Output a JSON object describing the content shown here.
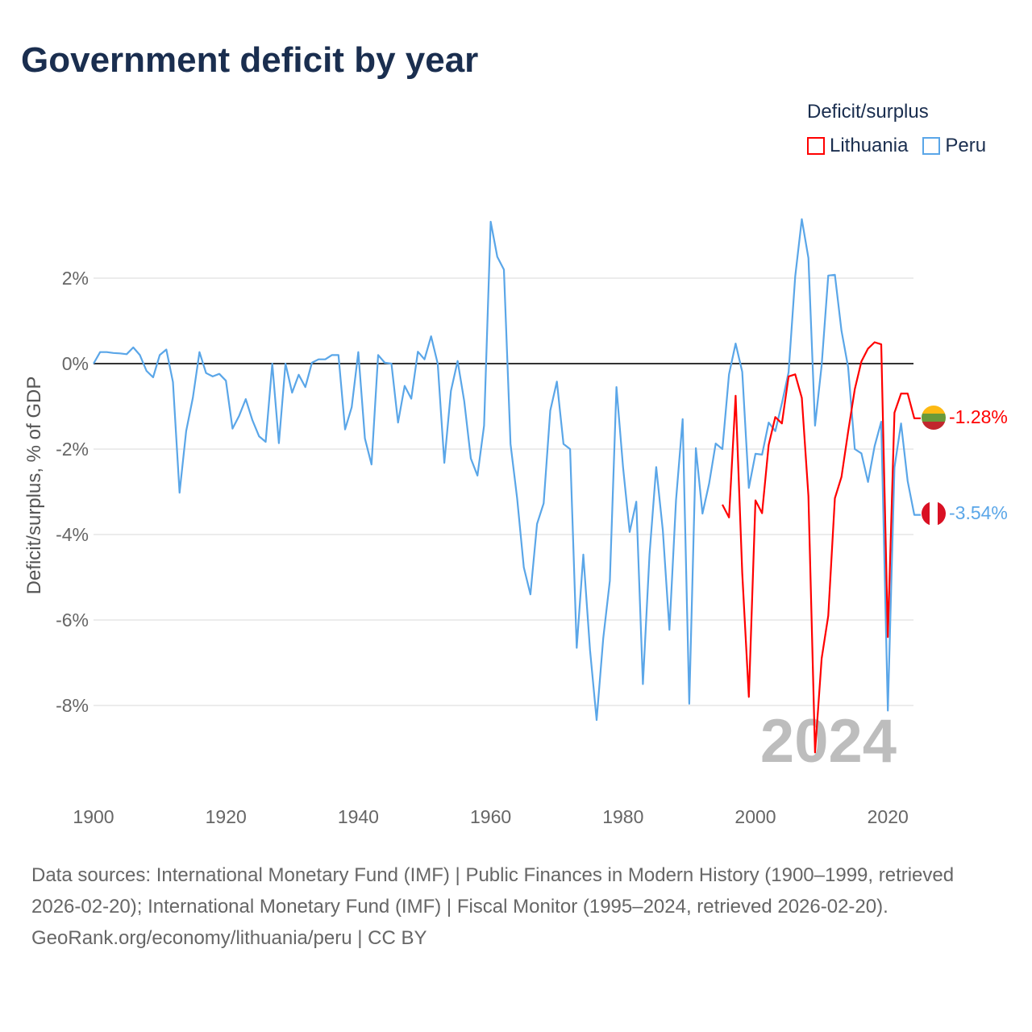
{
  "title": "Government deficit by year",
  "legend": {
    "title": "Deficit/surplus",
    "items": [
      {
        "name": "Lithuania",
        "color": "#ff0000"
      },
      {
        "name": "Peru",
        "color": "#5aa6e8"
      }
    ]
  },
  "year_label": "2024",
  "end_labels": {
    "lithuania": "-1.28%",
    "peru": "-3.54%"
  },
  "footer": {
    "sources": "Data sources: International Monetary Fund (IMF) | Public Finances in Modern History (1900–1999, retrieved 2026-02-20); International Monetary Fund (IMF) | Fiscal Monitor (1995–2024, retrieved 2026-02-20).",
    "credit": "GeoRank.org/economy/lithuania/peru | CC BY"
  },
  "chart_data": {
    "type": "line",
    "title": "Government deficit by year",
    "xlabel": "",
    "ylabel": "Deficit/surplus, % of GDP",
    "xlim": [
      1900,
      2024
    ],
    "ylim": [
      -10,
      3.5
    ],
    "x_ticks": [
      1900,
      1920,
      1940,
      1960,
      1980,
      2000,
      2020
    ],
    "x_tick_labels": [
      "1900",
      "1920",
      "1940",
      "1960",
      "1980",
      "2000",
      "2020"
    ],
    "y_ticks": [
      2,
      0,
      -2,
      -4,
      -6,
      -8
    ],
    "y_tick_labels": [
      "2%",
      "0%",
      "-2%",
      "-4%",
      "-6%",
      "-8%"
    ],
    "grid": true,
    "legend_position": "top-right",
    "series": [
      {
        "name": "Peru",
        "color": "#5aa6e8",
        "start_year": 1900,
        "values": [
          0,
          0.27,
          0.27,
          0.25,
          0.24,
          0.22,
          0.38,
          0.2,
          -0.17,
          -0.32,
          0.2,
          0.33,
          -0.43,
          -3.02,
          -1.58,
          -0.8,
          0.27,
          -0.22,
          -0.3,
          -0.24,
          -0.4,
          -1.52,
          -1.22,
          -0.83,
          -1.32,
          -1.7,
          -1.83,
          0,
          -1.86,
          0,
          -0.68,
          -0.26,
          -0.55,
          0.02,
          0.1,
          0.1,
          0.2,
          0.2,
          -1.54,
          -1.02,
          0.27,
          -1.75,
          -2.36,
          0.2,
          0.02,
          0,
          -1.38,
          -0.52,
          -0.82,
          0.28,
          0.1,
          0.64,
          0,
          -2.32,
          -0.64,
          0.06,
          -0.88,
          -2.22,
          -2.62,
          -1.45,
          3.32,
          2.5,
          2.2,
          -1.88,
          -3.15,
          -4.77,
          -5.4,
          -3.75,
          -3.27,
          -1.1,
          -0.42,
          -1.88,
          -2.0,
          -6.65,
          -4.47,
          -6.7,
          -8.34,
          -6.43,
          -5.08,
          -0.55,
          -2.43,
          -3.94,
          -3.23,
          -7.5,
          -4.47,
          -2.42,
          -3.9,
          -6.23,
          -3.19,
          -1.3,
          -7.96,
          -1.98,
          -3.51,
          -2.81,
          -1.87,
          -2.0,
          -0.25,
          0.47,
          -0.19,
          -2.91,
          -2.11,
          -2.13,
          -1.38,
          -1.58,
          -0.93,
          -0.2,
          2.04,
          3.38,
          2.47,
          -1.45,
          -0.04,
          2.06,
          2.08,
          0.77,
          -0.08,
          -2.0,
          -2.1,
          -2.77,
          -1.93,
          -1.36,
          -8.12,
          -2.43,
          -1.4,
          -2.75,
          -3.54
        ]
      },
      {
        "name": "Lithuania",
        "color": "#ff0000",
        "start_year": 1995,
        "values": [
          -3.3,
          -3.6,
          -0.75,
          -4.9,
          -7.8,
          -3.2,
          -3.5,
          -1.9,
          -1.25,
          -1.4,
          -0.3,
          -0.25,
          -0.8,
          -3.1,
          -9.1,
          -6.9,
          -5.9,
          -3.15,
          -2.65,
          -1.6,
          -0.6,
          0.05,
          0.35,
          0.5,
          0.45,
          -6.4,
          -1.15,
          -0.7,
          -0.7,
          -1.28
        ]
      }
    ]
  }
}
